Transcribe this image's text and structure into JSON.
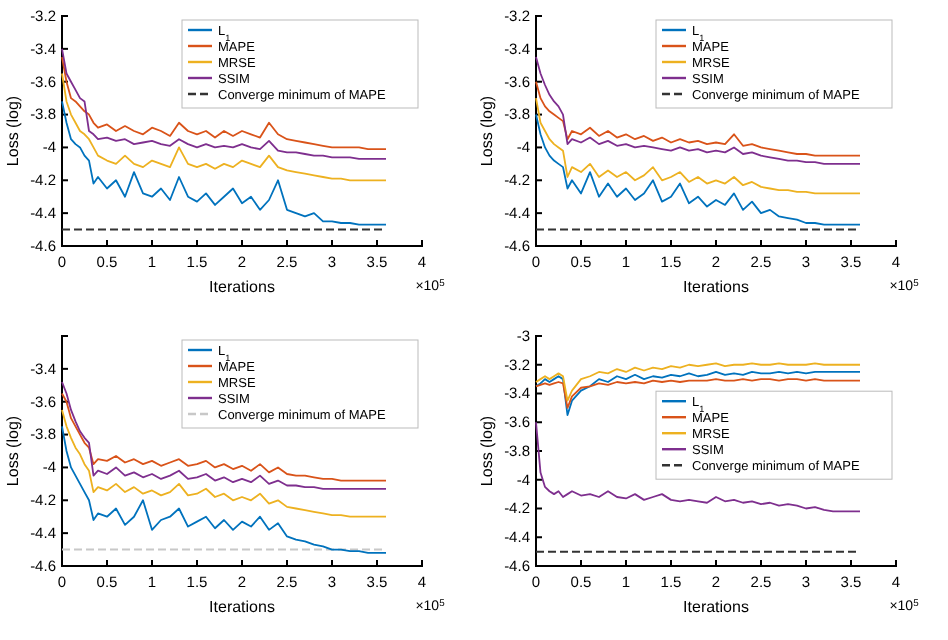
{
  "chart_data": [
    {
      "type": "line",
      "xlabel": "Iterations",
      "ylabel": "Loss (log)",
      "annotations": [
        "×10$^{5}$"
      ],
      "legend": "top right",
      "xlim": [
        0,
        4
      ],
      "xticks": [
        0,
        0.5,
        1,
        1.5,
        2,
        2.5,
        3,
        3.5,
        4
      ],
      "ylim": [
        -4.6,
        -3.2
      ],
      "yticks": [
        -4.6,
        -4.4,
        -4.2,
        -4,
        -3.8,
        -3.6,
        -3.4,
        -3.2
      ],
      "x": [
        0,
        0.05,
        0.1,
        0.15,
        0.2,
        0.25,
        0.3,
        0.35,
        0.4,
        0.5,
        0.6,
        0.7,
        0.8,
        0.9,
        1.0,
        1.1,
        1.2,
        1.3,
        1.4,
        1.5,
        1.6,
        1.7,
        1.8,
        1.9,
        2.0,
        2.1,
        2.2,
        2.3,
        2.4,
        2.5,
        2.6,
        2.7,
        2.8,
        2.9,
        3.0,
        3.1,
        3.2,
        3.3,
        3.4,
        3.5,
        3.6
      ],
      "ref_lines": [
        {
          "axis": "y",
          "value": -4.5,
          "label": "Converge minimum of MAPE",
          "color": "#333333",
          "line_style": "dashed"
        }
      ],
      "series": [
        {
          "name": "L$_{1}$",
          "color": "#0072bd",
          "values": [
            -3.72,
            -3.85,
            -3.95,
            -3.98,
            -4.0,
            -4.05,
            -4.08,
            -4.22,
            -4.18,
            -4.25,
            -4.2,
            -4.3,
            -4.15,
            -4.28,
            -4.3,
            -4.25,
            -4.32,
            -4.18,
            -4.3,
            -4.33,
            -4.28,
            -4.35,
            -4.3,
            -4.25,
            -4.34,
            -4.3,
            -4.38,
            -4.32,
            -4.2,
            -4.38,
            -4.4,
            -4.42,
            -4.4,
            -4.45,
            -4.45,
            -4.46,
            -4.46,
            -4.47,
            -4.47,
            -4.47,
            -4.47
          ]
        },
        {
          "name": "MAPE",
          "color": "#d95319",
          "values": [
            -3.45,
            -3.6,
            -3.7,
            -3.72,
            -3.75,
            -3.78,
            -3.8,
            -3.85,
            -3.88,
            -3.86,
            -3.9,
            -3.87,
            -3.9,
            -3.92,
            -3.88,
            -3.9,
            -3.93,
            -3.85,
            -3.9,
            -3.92,
            -3.9,
            -3.94,
            -3.9,
            -3.93,
            -3.9,
            -3.92,
            -3.94,
            -3.85,
            -3.92,
            -3.95,
            -3.96,
            -3.97,
            -3.98,
            -3.99,
            -4.0,
            -4.0,
            -4.0,
            -4.0,
            -4.01,
            -4.01,
            -4.01
          ]
        },
        {
          "name": "MRSE",
          "color": "#edb120",
          "values": [
            -3.55,
            -3.72,
            -3.8,
            -3.85,
            -3.9,
            -3.92,
            -3.95,
            -4.0,
            -4.05,
            -4.08,
            -4.1,
            -4.05,
            -4.1,
            -4.12,
            -4.08,
            -4.1,
            -4.12,
            -4.0,
            -4.1,
            -4.12,
            -4.1,
            -4.13,
            -4.1,
            -4.12,
            -4.08,
            -4.1,
            -4.12,
            -4.05,
            -4.12,
            -4.14,
            -4.15,
            -4.16,
            -4.17,
            -4.18,
            -4.19,
            -4.19,
            -4.2,
            -4.2,
            -4.2,
            -4.2,
            -4.2
          ]
        },
        {
          "name": "SSIM",
          "color": "#7e2f8e",
          "values": [
            -3.4,
            -3.55,
            -3.6,
            -3.65,
            -3.7,
            -3.72,
            -3.9,
            -3.92,
            -3.95,
            -3.94,
            -3.96,
            -3.95,
            -3.98,
            -3.97,
            -3.96,
            -3.98,
            -3.99,
            -3.95,
            -3.98,
            -4.0,
            -3.98,
            -4.0,
            -3.99,
            -4.0,
            -3.98,
            -4.0,
            -4.01,
            -3.96,
            -4.02,
            -4.03,
            -4.03,
            -4.04,
            -4.05,
            -4.05,
            -4.06,
            -4.06,
            -4.06,
            -4.07,
            -4.07,
            -4.07,
            -4.07
          ]
        }
      ]
    },
    {
      "type": "line",
      "xlabel": "Iterations",
      "ylabel": "Loss (log)",
      "annotations": [
        "×10$^{5}$"
      ],
      "legend": "top right",
      "xlim": [
        0,
        4
      ],
      "xticks": [
        0,
        0.5,
        1,
        1.5,
        2,
        2.5,
        3,
        3.5,
        4
      ],
      "ylim": [
        -4.6,
        -3.2
      ],
      "yticks": [
        -4.6,
        -4.4,
        -4.2,
        -4,
        -3.8,
        -3.6,
        -3.4,
        -3.2
      ],
      "x": [
        0,
        0.05,
        0.1,
        0.15,
        0.2,
        0.25,
        0.3,
        0.35,
        0.4,
        0.5,
        0.6,
        0.7,
        0.8,
        0.9,
        1.0,
        1.1,
        1.2,
        1.3,
        1.4,
        1.5,
        1.6,
        1.7,
        1.8,
        1.9,
        2.0,
        2.1,
        2.2,
        2.3,
        2.4,
        2.5,
        2.6,
        2.7,
        2.8,
        2.9,
        3.0,
        3.1,
        3.2,
        3.3,
        3.4,
        3.5,
        3.6
      ],
      "ref_lines": [
        {
          "axis": "y",
          "value": -4.5,
          "label": "Converge minimum of MAPE",
          "color": "#333333",
          "line_style": "dashed"
        }
      ],
      "series": [
        {
          "name": "L$_{1}$",
          "color": "#0072bd",
          "values": [
            -3.8,
            -3.92,
            -4.0,
            -4.05,
            -4.08,
            -4.1,
            -4.12,
            -4.25,
            -4.2,
            -4.28,
            -4.15,
            -4.3,
            -4.22,
            -4.3,
            -4.25,
            -4.32,
            -4.28,
            -4.2,
            -4.33,
            -4.3,
            -4.22,
            -4.34,
            -4.3,
            -4.36,
            -4.32,
            -4.35,
            -4.28,
            -4.38,
            -4.33,
            -4.4,
            -4.38,
            -4.42,
            -4.43,
            -4.44,
            -4.46,
            -4.46,
            -4.47,
            -4.47,
            -4.47,
            -4.47,
            -4.47
          ]
        },
        {
          "name": "MAPE",
          "color": "#d95319",
          "values": [
            -3.6,
            -3.7,
            -3.75,
            -3.78,
            -3.8,
            -3.82,
            -3.84,
            -3.95,
            -3.9,
            -3.92,
            -3.88,
            -3.93,
            -3.9,
            -3.94,
            -3.92,
            -3.95,
            -3.93,
            -3.96,
            -3.94,
            -3.97,
            -3.95,
            -3.97,
            -3.96,
            -3.98,
            -3.97,
            -3.98,
            -3.92,
            -3.99,
            -3.98,
            -4.0,
            -4.01,
            -4.02,
            -4.03,
            -4.04,
            -4.04,
            -4.05,
            -4.05,
            -4.05,
            -4.05,
            -4.05,
            -4.05
          ]
        },
        {
          "name": "MRSE",
          "color": "#edb120",
          "values": [
            -3.7,
            -3.85,
            -3.9,
            -3.95,
            -3.98,
            -4.0,
            -4.02,
            -4.18,
            -4.12,
            -4.15,
            -4.1,
            -4.18,
            -4.14,
            -4.18,
            -4.15,
            -4.2,
            -4.17,
            -4.12,
            -4.2,
            -4.18,
            -4.15,
            -4.21,
            -4.18,
            -4.22,
            -4.2,
            -4.22,
            -4.18,
            -4.23,
            -4.21,
            -4.24,
            -4.25,
            -4.26,
            -4.26,
            -4.27,
            -4.27,
            -4.28,
            -4.28,
            -4.28,
            -4.28,
            -4.28,
            -4.28
          ]
        },
        {
          "name": "SSIM",
          "color": "#7e2f8e",
          "values": [
            -3.45,
            -3.55,
            -3.62,
            -3.68,
            -3.72,
            -3.75,
            -3.8,
            -3.98,
            -3.95,
            -3.97,
            -3.94,
            -3.98,
            -3.96,
            -3.99,
            -3.98,
            -4.0,
            -3.99,
            -4.0,
            -4.01,
            -4.02,
            -4.0,
            -4.02,
            -4.01,
            -4.03,
            -4.02,
            -4.03,
            -4.0,
            -4.04,
            -4.03,
            -4.05,
            -4.06,
            -4.07,
            -4.08,
            -4.08,
            -4.09,
            -4.09,
            -4.1,
            -4.1,
            -4.1,
            -4.1,
            -4.1
          ]
        }
      ]
    },
    {
      "type": "line",
      "xlabel": "Iterations",
      "ylabel": "Loss (log)",
      "annotations": [
        "×10$^{5}$"
      ],
      "legend": "top right",
      "xlim": [
        0,
        4
      ],
      "xticks": [
        0,
        0.5,
        1,
        1.5,
        2,
        2.5,
        3,
        3.5,
        4
      ],
      "ylim": [
        -4.6,
        -3.2
      ],
      "yticks": [
        -4.6,
        -4.4,
        -4.2,
        -4,
        -3.8,
        -3.6,
        -3.4
      ],
      "x": [
        0,
        0.05,
        0.1,
        0.15,
        0.2,
        0.25,
        0.3,
        0.35,
        0.4,
        0.5,
        0.6,
        0.7,
        0.8,
        0.9,
        1.0,
        1.1,
        1.2,
        1.3,
        1.4,
        1.5,
        1.6,
        1.7,
        1.8,
        1.9,
        2.0,
        2.1,
        2.2,
        2.3,
        2.4,
        2.5,
        2.6,
        2.7,
        2.8,
        2.9,
        3.0,
        3.1,
        3.2,
        3.3,
        3.4,
        3.5,
        3.6
      ],
      "ref_lines": [
        {
          "axis": "y",
          "value": -4.5,
          "label": "Converge minimum of MAPE",
          "color": "#c8c8c8",
          "line_style": "dashed"
        }
      ],
      "series": [
        {
          "name": "L$_{1}$",
          "color": "#0072bd",
          "values": [
            -3.75,
            -3.9,
            -4.0,
            -4.05,
            -4.1,
            -4.15,
            -4.2,
            -4.32,
            -4.28,
            -4.3,
            -4.25,
            -4.35,
            -4.3,
            -4.2,
            -4.38,
            -4.32,
            -4.3,
            -4.25,
            -4.36,
            -4.33,
            -4.3,
            -4.37,
            -4.32,
            -4.38,
            -4.33,
            -4.36,
            -4.3,
            -4.38,
            -4.34,
            -4.42,
            -4.44,
            -4.45,
            -4.47,
            -4.48,
            -4.5,
            -4.5,
            -4.51,
            -4.51,
            -4.52,
            -4.52,
            -4.52
          ]
        },
        {
          "name": "MAPE",
          "color": "#d95319",
          "values": [
            -3.55,
            -3.6,
            -3.7,
            -3.75,
            -3.8,
            -3.85,
            -3.88,
            -3.98,
            -3.95,
            -3.96,
            -3.93,
            -3.97,
            -3.95,
            -3.98,
            -3.96,
            -3.99,
            -3.97,
            -3.95,
            -3.99,
            -3.98,
            -3.96,
            -4.0,
            -3.98,
            -4.01,
            -3.99,
            -4.02,
            -3.98,
            -4.03,
            -4.0,
            -4.04,
            -4.05,
            -4.05,
            -4.06,
            -4.07,
            -4.07,
            -4.08,
            -4.08,
            -4.08,
            -4.08,
            -4.08,
            -4.08
          ]
        },
        {
          "name": "MRSE",
          "color": "#edb120",
          "values": [
            -3.65,
            -3.75,
            -3.82,
            -3.88,
            -3.92,
            -3.98,
            -4.02,
            -4.15,
            -4.12,
            -4.14,
            -4.1,
            -4.15,
            -4.12,
            -4.16,
            -4.14,
            -4.17,
            -4.15,
            -4.1,
            -4.17,
            -4.16,
            -4.13,
            -4.18,
            -4.16,
            -4.2,
            -4.18,
            -4.2,
            -4.16,
            -4.22,
            -4.2,
            -4.24,
            -4.25,
            -4.26,
            -4.27,
            -4.28,
            -4.29,
            -4.29,
            -4.3,
            -4.3,
            -4.3,
            -4.3,
            -4.3
          ]
        },
        {
          "name": "SSIM",
          "color": "#7e2f8e",
          "values": [
            -3.48,
            -3.55,
            -3.65,
            -3.72,
            -3.78,
            -3.82,
            -3.85,
            -4.05,
            -4.02,
            -4.04,
            -4.0,
            -4.05,
            -4.03,
            -4.06,
            -4.04,
            -4.07,
            -4.05,
            -4.02,
            -4.07,
            -4.06,
            -4.04,
            -4.08,
            -4.06,
            -4.09,
            -4.07,
            -4.09,
            -4.05,
            -4.1,
            -4.08,
            -4.11,
            -4.11,
            -4.12,
            -4.12,
            -4.13,
            -4.13,
            -4.13,
            -4.13,
            -4.13,
            -4.13,
            -4.13,
            -4.13
          ]
        }
      ]
    },
    {
      "type": "line",
      "xlabel": "Iterations",
      "ylabel": "Loss (log)",
      "annotations": [
        "×10$^{5}$"
      ],
      "legend": "right",
      "xlim": [
        0,
        4
      ],
      "xticks": [
        0,
        0.5,
        1,
        1.5,
        2,
        2.5,
        3,
        3.5,
        4
      ],
      "ylim": [
        -4.6,
        -3
      ],
      "yticks": [
        -4.6,
        -4.4,
        -4.2,
        -4,
        -3.8,
        -3.6,
        -3.4,
        -3.2,
        -3
      ],
      "x": [
        0,
        0.05,
        0.1,
        0.15,
        0.2,
        0.25,
        0.3,
        0.35,
        0.4,
        0.5,
        0.6,
        0.7,
        0.8,
        0.9,
        1.0,
        1.1,
        1.2,
        1.3,
        1.4,
        1.5,
        1.6,
        1.7,
        1.8,
        1.9,
        2.0,
        2.1,
        2.2,
        2.3,
        2.4,
        2.5,
        2.6,
        2.7,
        2.8,
        2.9,
        3.0,
        3.1,
        3.2,
        3.3,
        3.4,
        3.5,
        3.6
      ],
      "ref_lines": [
        {
          "axis": "y",
          "value": -4.5,
          "label": "Converge minimum of MAPE",
          "color": "#333333",
          "line_style": "dashed"
        }
      ],
      "series": [
        {
          "name": "L$_{1}$",
          "color": "#0072bd",
          "values": [
            -3.35,
            -3.33,
            -3.3,
            -3.32,
            -3.3,
            -3.28,
            -3.3,
            -3.55,
            -3.45,
            -3.38,
            -3.35,
            -3.3,
            -3.32,
            -3.28,
            -3.3,
            -3.27,
            -3.3,
            -3.28,
            -3.29,
            -3.27,
            -3.28,
            -3.26,
            -3.28,
            -3.27,
            -3.25,
            -3.27,
            -3.26,
            -3.27,
            -3.25,
            -3.26,
            -3.26,
            -3.25,
            -3.26,
            -3.25,
            -3.26,
            -3.25,
            -3.25,
            -3.25,
            -3.25,
            -3.25,
            -3.25
          ]
        },
        {
          "name": "MAPE",
          "color": "#d95319",
          "values": [
            -3.35,
            -3.34,
            -3.33,
            -3.34,
            -3.33,
            -3.32,
            -3.33,
            -3.5,
            -3.42,
            -3.36,
            -3.35,
            -3.33,
            -3.34,
            -3.32,
            -3.33,
            -3.32,
            -3.33,
            -3.31,
            -3.32,
            -3.31,
            -3.32,
            -3.31,
            -3.31,
            -3.31,
            -3.3,
            -3.31,
            -3.31,
            -3.3,
            -3.31,
            -3.3,
            -3.3,
            -3.31,
            -3.3,
            -3.3,
            -3.31,
            -3.3,
            -3.31,
            -3.31,
            -3.31,
            -3.31,
            -3.31
          ]
        },
        {
          "name": "MRSE",
          "color": "#edb120",
          "values": [
            -3.32,
            -3.3,
            -3.28,
            -3.3,
            -3.28,
            -3.26,
            -3.28,
            -3.45,
            -3.38,
            -3.3,
            -3.28,
            -3.25,
            -3.26,
            -3.23,
            -3.25,
            -3.22,
            -3.24,
            -3.22,
            -3.23,
            -3.21,
            -3.22,
            -3.2,
            -3.21,
            -3.2,
            -3.19,
            -3.21,
            -3.2,
            -3.2,
            -3.19,
            -3.2,
            -3.2,
            -3.19,
            -3.2,
            -3.2,
            -3.2,
            -3.19,
            -3.2,
            -3.2,
            -3.2,
            -3.2,
            -3.2
          ]
        },
        {
          "name": "SSIM",
          "color": "#7e2f8e",
          "values": [
            -3.6,
            -3.95,
            -4.05,
            -4.08,
            -4.1,
            -4.08,
            -4.12,
            -4.1,
            -4.08,
            -4.11,
            -4.1,
            -4.12,
            -4.08,
            -4.12,
            -4.13,
            -4.1,
            -4.14,
            -4.12,
            -4.1,
            -4.14,
            -4.15,
            -4.14,
            -4.15,
            -4.16,
            -4.12,
            -4.15,
            -4.14,
            -4.16,
            -4.15,
            -4.17,
            -4.16,
            -4.18,
            -4.17,
            -4.18,
            -4.2,
            -4.19,
            -4.21,
            -4.22,
            -4.22,
            -4.22,
            -4.22
          ]
        }
      ]
    }
  ]
}
